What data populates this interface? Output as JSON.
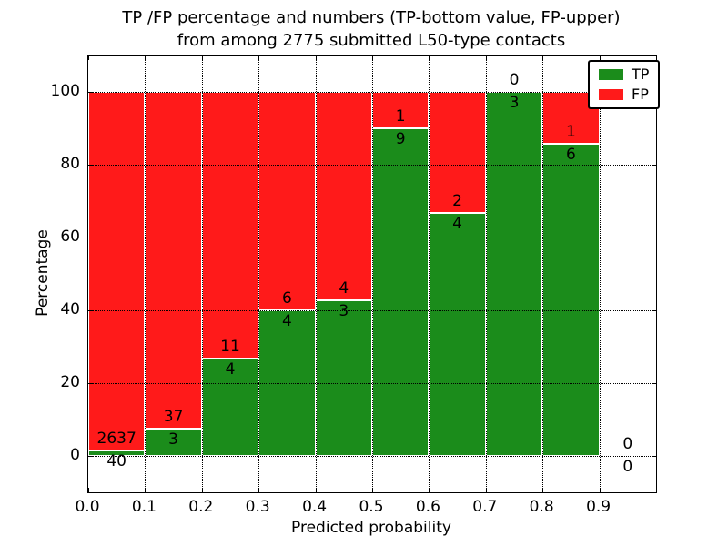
{
  "figure": {
    "title_line1": "TP /FP percentage and numbers (TP-bottom value, FP-upper)",
    "title_line2": "from among 2775 submitted L50-type contacts"
  },
  "axes": {
    "xlabel": "Predicted probability",
    "ylabel": "Percentage",
    "x_ticks": [
      "0.0",
      "0.1",
      "0.2",
      "0.3",
      "0.4",
      "0.5",
      "0.6",
      "0.7",
      "0.8",
      "0.9"
    ],
    "y_ticks": [
      "0",
      "20",
      "40",
      "60",
      "80",
      "100"
    ],
    "xlim": [
      0.0,
      1.0
    ],
    "ylim": [
      -10,
      110
    ],
    "grid_style": "dotted"
  },
  "legend": {
    "position": "upper right",
    "items": [
      {
        "label": "TP",
        "color": "#1b8c1b"
      },
      {
        "label": "FP",
        "color": "#ff1a1a"
      }
    ]
  },
  "chart_data": {
    "type": "bar",
    "stacked": true,
    "normalized_to_percent": true,
    "title": "TP /FP percentage and numbers (TP-bottom value, FP-upper) from among 2775 submitted L50-type contacts",
    "xlabel": "Predicted probability",
    "ylabel": "Percentage",
    "total_contacts": 2775,
    "bin_width": 0.1,
    "colors": {
      "tp": "#1b8c1b",
      "fp": "#ff1a1a"
    },
    "bins": [
      {
        "x0": 0.0,
        "x1": 0.1,
        "tp": 40,
        "fp": 2637
      },
      {
        "x0": 0.1,
        "x1": 0.2,
        "tp": 3,
        "fp": 37
      },
      {
        "x0": 0.2,
        "x1": 0.3,
        "tp": 4,
        "fp": 11
      },
      {
        "x0": 0.3,
        "x1": 0.4,
        "tp": 4,
        "fp": 6
      },
      {
        "x0": 0.4,
        "x1": 0.5,
        "tp": 3,
        "fp": 4
      },
      {
        "x0": 0.5,
        "x1": 0.6,
        "tp": 9,
        "fp": 1
      },
      {
        "x0": 0.6,
        "x1": 0.7,
        "tp": 4,
        "fp": 2
      },
      {
        "x0": 0.7,
        "x1": 0.8,
        "tp": 3,
        "fp": 0
      },
      {
        "x0": 0.8,
        "x1": 0.9,
        "tp": 6,
        "fp": 1
      },
      {
        "x0": 0.9,
        "x1": 1.0,
        "tp": 0,
        "fp": 0
      }
    ]
  }
}
